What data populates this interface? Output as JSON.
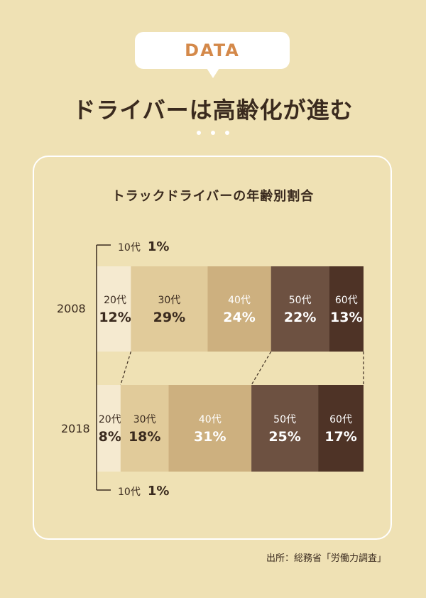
{
  "badge": {
    "label": "DATA"
  },
  "headline": "ドライバーは高齢化が進む",
  "source": "出所：総務省「労働力調査」",
  "colors": {
    "background": "#efe1b4",
    "badge_text": "#d4894a",
    "10代": "#f5ead0",
    "20代": "#f5ead0",
    "30代": "#e1cb9a",
    "40代": "#cdb07f",
    "50代": "#6d5141",
    "60代": "#4e3326"
  },
  "chart_data": {
    "type": "bar",
    "stacked": true,
    "orientation": "horizontal",
    "title": "トラックドライバーの年齢別割合",
    "categories": [
      "2008",
      "2018"
    ],
    "unit": "%",
    "series": [
      {
        "name": "10代",
        "values": [
          1,
          1
        ],
        "labels": [
          "1%",
          "1%"
        ]
      },
      {
        "name": "20代",
        "values": [
          12,
          8
        ],
        "labels": [
          "12%",
          "8%"
        ]
      },
      {
        "name": "30代",
        "values": [
          29,
          18
        ],
        "labels": [
          "29%",
          "18%"
        ]
      },
      {
        "name": "40代",
        "values": [
          24,
          31
        ],
        "labels": [
          "24%",
          "31%"
        ]
      },
      {
        "name": "50代",
        "values": [
          22,
          25
        ],
        "labels": [
          "22%",
          "25%"
        ]
      },
      {
        "name": "60代",
        "values": [
          13,
          17
        ],
        "labels": [
          "13%",
          "17%"
        ]
      }
    ]
  }
}
